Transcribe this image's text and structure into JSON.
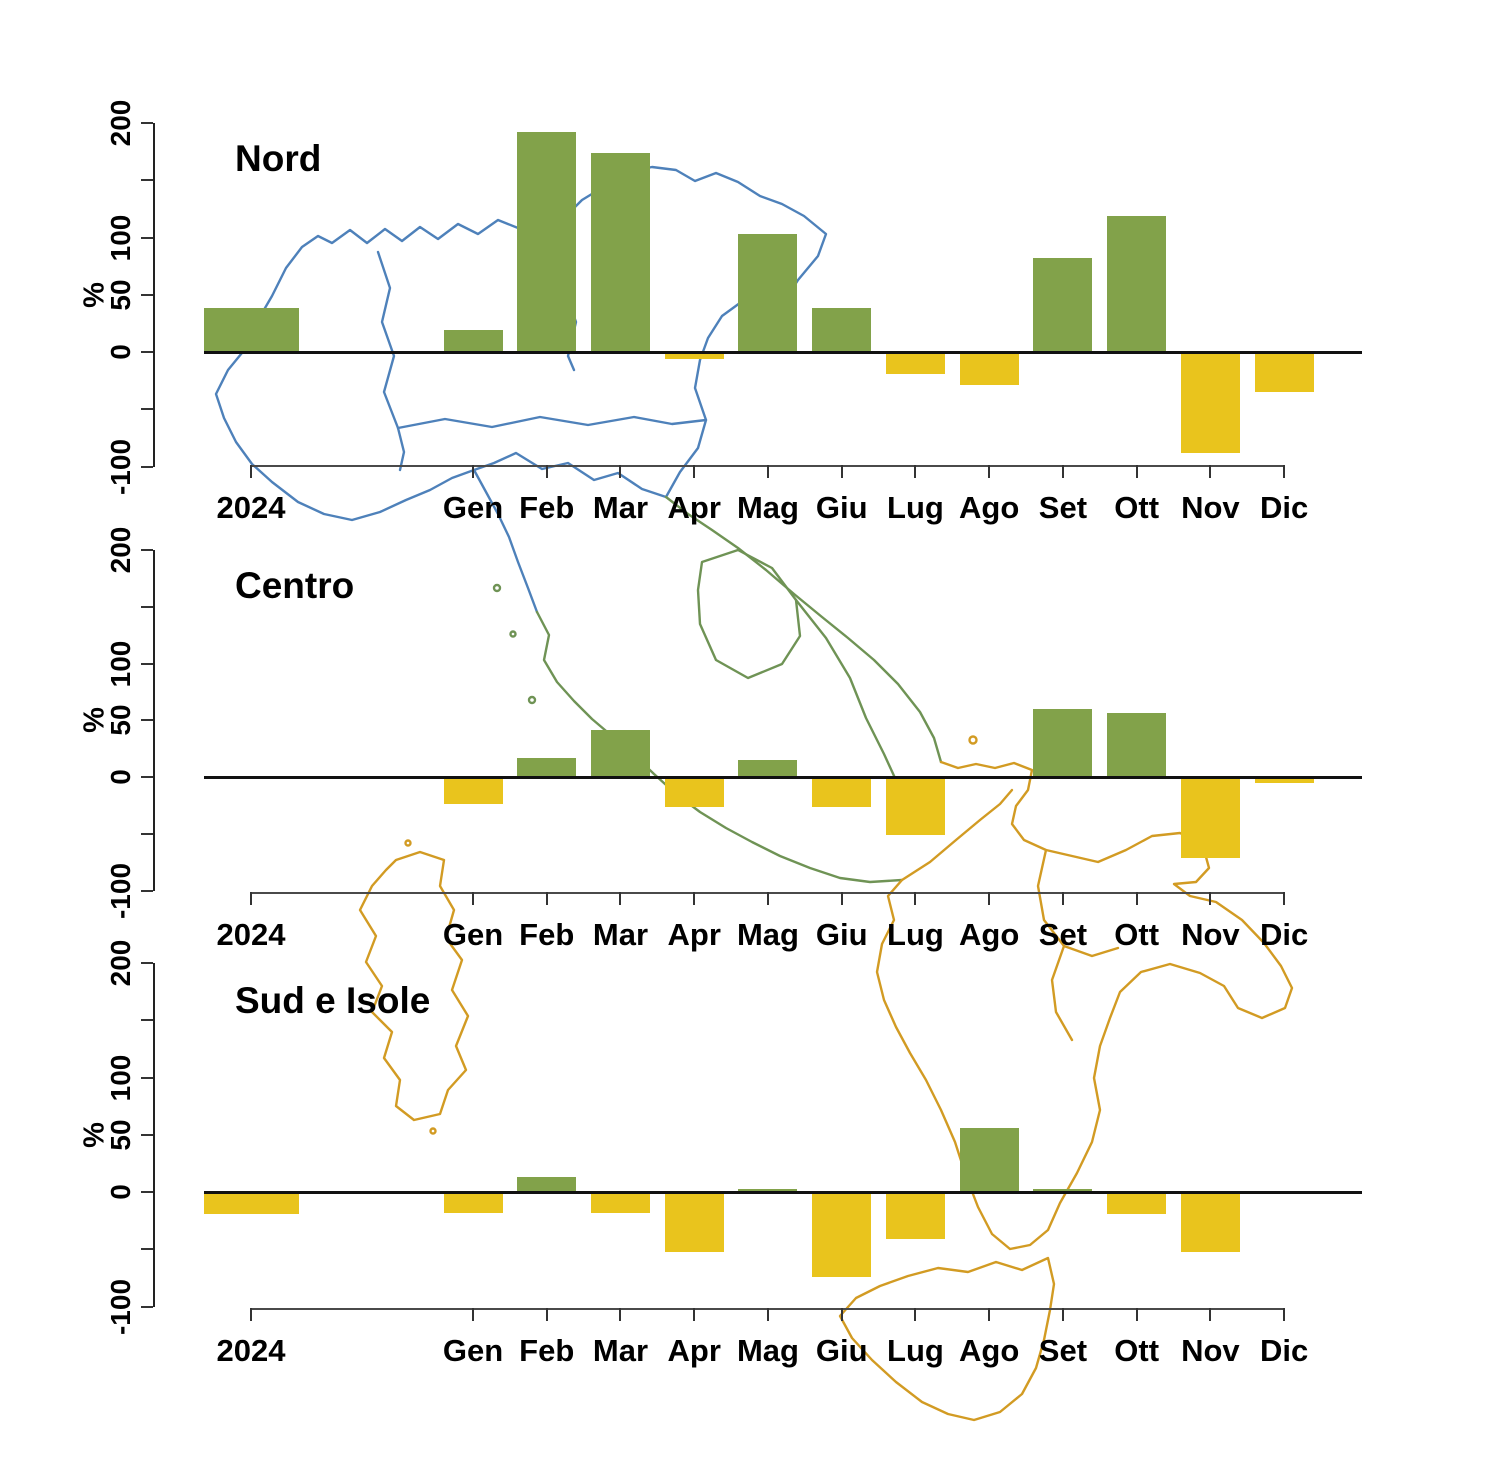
{
  "figure": {
    "background": "#ffffff",
    "year_label": "2024"
  },
  "colors": {
    "bar_positive": "#82a24a",
    "bar_negative": "#e9c41d",
    "map_north": "#4e81ba",
    "map_center": "#6f9355",
    "map_south": "#d29b23",
    "zero_line": "#111111",
    "axis": "#444444",
    "text": "#000000"
  },
  "axis": {
    "y_label": "%",
    "year_label": "2024",
    "months": [
      "Gen",
      "Feb",
      "Mar",
      "Apr",
      "Mag",
      "Giu",
      "Lug",
      "Ago",
      "Set",
      "Ott",
      "Nov",
      "Dic"
    ],
    "y_ticks": [
      {
        "value": -100,
        "label": "-100"
      },
      {
        "value": -50,
        "label": ""
      },
      {
        "value": 0,
        "label": "0"
      },
      {
        "value": 50,
        "label": "50"
      },
      {
        "value": 100,
        "label": "100"
      },
      {
        "value": 150,
        "label": ""
      },
      {
        "value": 200,
        "label": "200"
      }
    ],
    "ylim": [
      -100,
      200
    ]
  },
  "chart_data": [
    {
      "type": "bar",
      "title": "Nord",
      "categories": [
        "2024",
        "Gen",
        "Feb",
        "Mar",
        "Apr",
        "Mag",
        "Giu",
        "Lug",
        "Ago",
        "Set",
        "Ott",
        "Nov",
        "Dic"
      ],
      "values": [
        38,
        19,
        192,
        174,
        -6,
        103,
        38,
        -19,
        -29,
        82,
        119,
        -88,
        -35
      ],
      "xlabel": "",
      "ylabel": "%",
      "ylim": [
        -100,
        200
      ],
      "grid": false,
      "legend": "none"
    },
    {
      "type": "bar",
      "title": "Centro",
      "categories": [
        "2024",
        "Gen",
        "Feb",
        "Mar",
        "Apr",
        "Mag",
        "Giu",
        "Lug",
        "Ago",
        "Set",
        "Ott",
        "Nov",
        "Dic"
      ],
      "values": [
        0,
        -24,
        17,
        41,
        -26,
        15,
        -26,
        -51,
        0,
        60,
        56,
        -71,
        -5
      ],
      "xlabel": "",
      "ylabel": "%",
      "ylim": [
        -100,
        200
      ],
      "grid": false,
      "legend": "none"
    },
    {
      "type": "bar",
      "title": "Sud e Isole",
      "categories": [
        "2024",
        "Gen",
        "Feb",
        "Mar",
        "Apr",
        "Mag",
        "Giu",
        "Lug",
        "Ago",
        "Set",
        "Ott",
        "Nov",
        "Dic"
      ],
      "values": [
        -19,
        -18,
        13,
        -18,
        -52,
        3,
        -74,
        -41,
        56,
        3,
        -19,
        -52,
        0
      ],
      "xlabel": "",
      "ylabel": "%",
      "ylim": [
        -100,
        200
      ],
      "grid": false,
      "legend": "none"
    }
  ],
  "map": {
    "description": "Outline map of Italian regions behind the charts",
    "regions": [
      {
        "name": "Nord",
        "color": "#4e81ba"
      },
      {
        "name": "Centro",
        "color": "#6f9355"
      },
      {
        "name": "Sud e Isole",
        "color": "#d29b23"
      }
    ]
  }
}
